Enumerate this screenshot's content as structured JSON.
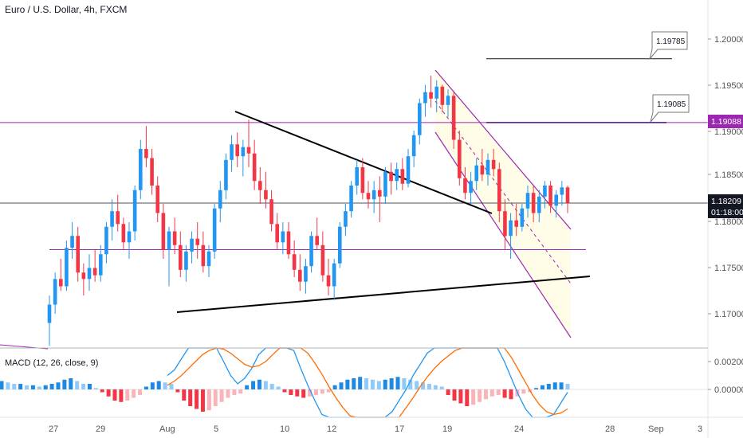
{
  "chart_data": {
    "type": "candlestick",
    "title": "Euro / U.S. Dollar, 4h, FXCM",
    "price_axis": {
      "ticks": [
        "1.20000",
        "1.19500",
        "1.19000",
        "1.18500",
        "1.18000",
        "1.17500",
        "1.17000"
      ],
      "range": [
        1.166,
        1.205
      ]
    },
    "time_axis": {
      "labels": [
        "27",
        "29",
        "Aug",
        "5",
        "10",
        "12",
        "17",
        "19",
        "24",
        "28",
        "Sep",
        "3"
      ]
    },
    "current_price": {
      "value": "1.18209",
      "countdown": "01:18:00"
    },
    "level_tag": {
      "value": "1.19088",
      "color": "#9c27b0"
    },
    "callouts": [
      {
        "text": "1.19785",
        "price": 1.19785
      },
      {
        "text": "1.19085",
        "price": 1.19085
      }
    ],
    "horizontal_levels": [
      {
        "price": 1.19088,
        "color": "#9c27b0"
      },
      {
        "price": 1.177,
        "color": "#9c27b0"
      },
      {
        "price": 1.18209,
        "color": "#131722"
      }
    ],
    "candles": [
      [
        1.169,
        1.172,
        1.1665,
        1.171
      ],
      [
        1.171,
        1.1745,
        1.17,
        1.1738
      ],
      [
        1.1738,
        1.176,
        1.1725,
        1.173
      ],
      [
        1.173,
        1.178,
        1.1725,
        1.1772
      ],
      [
        1.1772,
        1.18,
        1.176,
        1.1785
      ],
      [
        1.1785,
        1.1795,
        1.1735,
        1.1745
      ],
      [
        1.1745,
        1.1755,
        1.172,
        1.1738
      ],
      [
        1.1738,
        1.1765,
        1.1725,
        1.175
      ],
      [
        1.175,
        1.177,
        1.1735,
        1.1742
      ],
      [
        1.1742,
        1.1775,
        1.1735,
        1.1765
      ],
      [
        1.1765,
        1.18,
        1.1755,
        1.1795
      ],
      [
        1.1795,
        1.1825,
        1.178,
        1.1812
      ],
      [
        1.1812,
        1.183,
        1.179,
        1.1798
      ],
      [
        1.1798,
        1.1805,
        1.177,
        1.1778
      ],
      [
        1.1778,
        1.18,
        1.176,
        1.179
      ],
      [
        1.179,
        1.184,
        1.178,
        1.1835
      ],
      [
        1.1835,
        1.189,
        1.1825,
        1.188
      ],
      [
        1.188,
        1.1905,
        1.186,
        1.187
      ],
      [
        1.187,
        1.188,
        1.183,
        1.184
      ],
      [
        1.184,
        1.185,
        1.18,
        1.181
      ],
      [
        1.181,
        1.182,
        1.176,
        1.177
      ],
      [
        1.177,
        1.1795,
        1.173,
        1.179
      ],
      [
        1.179,
        1.1805,
        1.1765,
        1.1775
      ],
      [
        1.1775,
        1.179,
        1.174,
        1.1748
      ],
      [
        1.1748,
        1.1775,
        1.1735,
        1.1768
      ],
      [
        1.1768,
        1.179,
        1.1755,
        1.1782
      ],
      [
        1.1782,
        1.18,
        1.176,
        1.1775
      ],
      [
        1.1775,
        1.179,
        1.1745,
        1.1752
      ],
      [
        1.1752,
        1.1775,
        1.174,
        1.1768
      ],
      [
        1.1768,
        1.182,
        1.176,
        1.1815
      ],
      [
        1.1815,
        1.1845,
        1.18,
        1.1835
      ],
      [
        1.1835,
        1.1875,
        1.1825,
        1.1868
      ],
      [
        1.1868,
        1.1895,
        1.1855,
        1.1885
      ],
      [
        1.1885,
        1.1898,
        1.186,
        1.1872
      ],
      [
        1.1872,
        1.189,
        1.185,
        1.1882
      ],
      [
        1.1882,
        1.1912,
        1.186,
        1.1875
      ],
      [
        1.1875,
        1.189,
        1.1835,
        1.1845
      ],
      [
        1.1845,
        1.186,
        1.182,
        1.1835
      ],
      [
        1.1835,
        1.1855,
        1.1815,
        1.1825
      ],
      [
        1.1825,
        1.1835,
        1.179,
        1.1798
      ],
      [
        1.1798,
        1.181,
        1.177,
        1.1778
      ],
      [
        1.1778,
        1.18,
        1.1765,
        1.179
      ],
      [
        1.179,
        1.18,
        1.176,
        1.1765
      ],
      [
        1.1765,
        1.178,
        1.174,
        1.1748
      ],
      [
        1.1748,
        1.1765,
        1.1725,
        1.1735
      ],
      [
        1.1735,
        1.176,
        1.1722,
        1.1752
      ],
      [
        1.1752,
        1.179,
        1.1745,
        1.1785
      ],
      [
        1.1785,
        1.1805,
        1.177,
        1.1775
      ],
      [
        1.1775,
        1.179,
        1.1735,
        1.1742
      ],
      [
        1.1742,
        1.176,
        1.172,
        1.173
      ],
      [
        1.173,
        1.176,
        1.1715,
        1.1755
      ],
      [
        1.1755,
        1.18,
        1.175,
        1.1795
      ],
      [
        1.1795,
        1.182,
        1.1785,
        1.1812
      ],
      [
        1.1812,
        1.1845,
        1.1805,
        1.184
      ],
      [
        1.184,
        1.1868,
        1.183,
        1.186
      ],
      [
        1.186,
        1.187,
        1.1825,
        1.1832
      ],
      [
        1.1832,
        1.1845,
        1.1815,
        1.1825
      ],
      [
        1.1825,
        1.1845,
        1.181,
        1.1835
      ],
      [
        1.1835,
        1.185,
        1.18,
        1.1828
      ],
      [
        1.1828,
        1.186,
        1.182,
        1.1855
      ],
      [
        1.1855,
        1.1865,
        1.183,
        1.1845
      ],
      [
        1.1845,
        1.1865,
        1.1835,
        1.1858
      ],
      [
        1.1858,
        1.187,
        1.1835,
        1.1842
      ],
      [
        1.1842,
        1.188,
        1.1838,
        1.1872
      ],
      [
        1.1872,
        1.19,
        1.186,
        1.1895
      ],
      [
        1.1895,
        1.1935,
        1.1885,
        1.193
      ],
      [
        1.193,
        1.195,
        1.1915,
        1.1942
      ],
      [
        1.1942,
        1.196,
        1.1925,
        1.1935
      ],
      [
        1.1935,
        1.1955,
        1.192,
        1.1948
      ],
      [
        1.1948,
        1.195,
        1.192,
        1.1928
      ],
      [
        1.1928,
        1.1945,
        1.1915,
        1.1938
      ],
      [
        1.1938,
        1.1942,
        1.188,
        1.189
      ],
      [
        1.189,
        1.19,
        1.184,
        1.1848
      ],
      [
        1.1848,
        1.186,
        1.1825,
        1.1832
      ],
      [
        1.1832,
        1.1855,
        1.182,
        1.1845
      ],
      [
        1.1845,
        1.187,
        1.1835,
        1.1862
      ],
      [
        1.1862,
        1.188,
        1.1845,
        1.1852
      ],
      [
        1.1852,
        1.1875,
        1.184,
        1.1868
      ],
      [
        1.1868,
        1.188,
        1.185,
        1.1858
      ],
      [
        1.1858,
        1.1865,
        1.18,
        1.1812
      ],
      [
        1.1812,
        1.1825,
        1.177,
        1.1785
      ],
      [
        1.1785,
        1.181,
        1.176,
        1.1802
      ],
      [
        1.1802,
        1.182,
        1.1785,
        1.1795
      ],
      [
        1.1795,
        1.182,
        1.179,
        1.1815
      ],
      [
        1.1815,
        1.184,
        1.1805,
        1.1832
      ],
      [
        1.1832,
        1.184,
        1.18,
        1.181
      ],
      [
        1.181,
        1.1835,
        1.18,
        1.1828
      ],
      [
        1.1828,
        1.1845,
        1.1815,
        1.184
      ],
      [
        1.184,
        1.1845,
        1.181,
        1.1818
      ],
      [
        1.1818,
        1.1835,
        1.1805,
        1.183
      ],
      [
        1.183,
        1.1845,
        1.1818,
        1.1838
      ],
      [
        1.1838,
        1.184,
        1.181,
        1.1821
      ]
    ],
    "macd": {
      "label": "MACD (12, 26, close, 9)",
      "ticks": [
        "0.00200",
        "0.00000"
      ],
      "range": [
        -0.0038,
        0.0048
      ],
      "histogram": [
        0.0006,
        0.0005,
        0.0004,
        0.0004,
        0.0003,
        0.0003,
        0.0002,
        0.0003,
        0.0004,
        0.0005,
        0.0007,
        0.0008,
        0.0006,
        0.0004,
        0.0004,
        0.0001,
        -0.0002,
        -0.0005,
        -0.0008,
        -0.0009,
        -0.0008,
        -0.0006,
        -0.0004,
        0.0002,
        0.0005,
        0.0006,
        0.0005,
        0.0004,
        -0.0002,
        -0.0008,
        -0.0012,
        -0.0014,
        -0.0016,
        -0.0015,
        -0.0012,
        -0.0009,
        -0.0006,
        -0.0004,
        -0.0003,
        0.0003,
        0.0006,
        0.0007,
        0.0006,
        0.0004,
        0.0002,
        -0.0002,
        -0.0004,
        -0.0005,
        -0.0006,
        -0.0005,
        -0.0004,
        -0.0003,
        -0.0002,
        0.0003,
        0.0005,
        0.0007,
        0.0008,
        0.0009,
        0.0008,
        0.0007,
        0.0006,
        0.0007,
        0.0008,
        0.0009,
        0.0008,
        0.0007,
        0.0006,
        0.0005,
        0.0004,
        0.0003,
        0.0002,
        -0.0004,
        -0.0008,
        -0.001,
        -0.0012,
        -0.0011,
        -0.0009,
        -0.0007,
        -0.0005,
        -0.0004,
        -0.0006,
        -0.0007,
        -0.0005,
        -0.0003,
        -0.0002,
        0.0001,
        0.0003,
        0.0004,
        0.0005,
        0.0005,
        0.0004
      ],
      "macd_line": [
        0.001,
        0.0014,
        0.0022,
        0.0032,
        0.004,
        0.0045,
        0.004,
        0.003,
        0.002,
        0.001,
        0.0004,
        0.0008,
        0.0015,
        0.0025,
        0.0035,
        0.0042,
        0.0046,
        0.004,
        0.0028,
        0.0015,
        0.0003,
        -0.0008,
        -0.0018,
        -0.0024,
        -0.0028,
        -0.003,
        -0.0033,
        -0.0034,
        -0.0036,
        -0.0035,
        -0.003,
        -0.0024,
        -0.0016,
        -0.0008,
        0.0,
        0.001,
        0.0018,
        0.0026,
        0.003,
        0.0033,
        0.0036,
        0.004,
        0.0045,
        0.0052,
        0.0058,
        0.005,
        0.004,
        0.003,
        0.002,
        0.0008,
        -0.0004,
        -0.0014,
        -0.0022,
        -0.0026,
        -0.0025,
        -0.0018,
        -0.001,
        -0.0002
      ],
      "signal_line": [
        0.0003,
        0.0006,
        0.001,
        0.0015,
        0.002,
        0.0025,
        0.0028,
        0.003,
        0.0029,
        0.0026,
        0.0022,
        0.0018,
        0.0016,
        0.0017,
        0.002,
        0.0025,
        0.003,
        0.0034,
        0.0034,
        0.0031,
        0.0026,
        0.0019,
        0.0011,
        0.0002,
        -0.0006,
        -0.0013,
        -0.0019,
        -0.0024,
        -0.0028,
        -0.0031,
        -0.0032,
        -0.003,
        -0.0026,
        -0.002,
        -0.0013,
        -0.0006,
        0.0002,
        0.0009,
        0.0015,
        0.002,
        0.0024,
        0.0028,
        0.0032,
        0.0036,
        0.004,
        0.0042,
        0.0041,
        0.0037,
        0.0031,
        0.0023,
        0.0014,
        0.0005,
        -0.0004,
        -0.0011,
        -0.0016,
        -0.0018,
        -0.0017,
        -0.0014
      ]
    },
    "colors": {
      "up": "#2196f3",
      "down": "#f23645",
      "hist_pos_dark": "#1e88e5",
      "hist_pos_light": "#90caf9",
      "hist_neg_dark": "#f23645",
      "hist_neg_light": "#f8b4b9",
      "macd": "#2196f3",
      "signal": "#ff6d00",
      "channel": "#9c27b0",
      "channel_fill": "#fffde7",
      "trendline": "#000000"
    }
  }
}
